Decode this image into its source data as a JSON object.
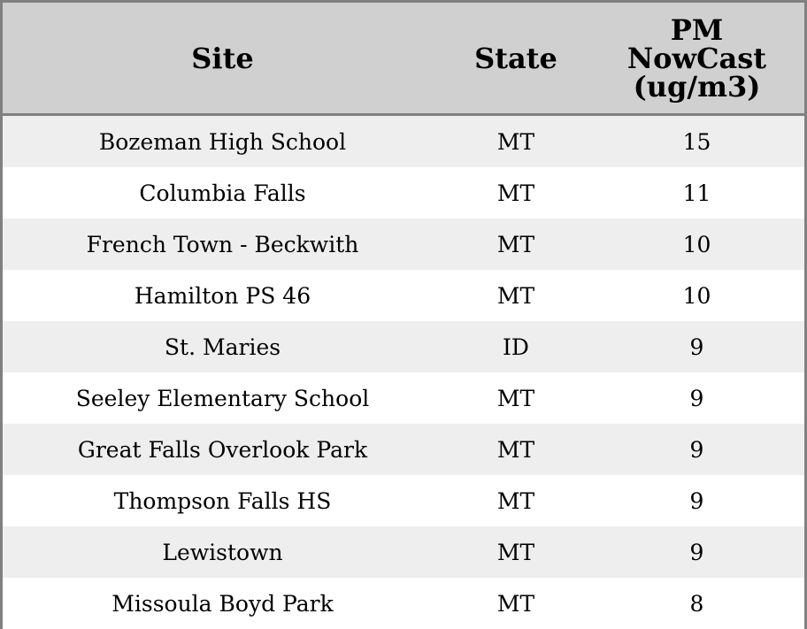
{
  "chart_data": {
    "type": "table",
    "columns": [
      "Site",
      "State",
      "PM\nNowCast\n(ug/m3)"
    ],
    "rows": [
      [
        "Bozeman High School",
        "MT",
        "15"
      ],
      [
        "Columbia Falls",
        "MT",
        "11"
      ],
      [
        "French Town - Beckwith",
        "MT",
        "10"
      ],
      [
        "Hamilton PS 46",
        "MT",
        "10"
      ],
      [
        "St. Maries",
        "ID",
        "9"
      ],
      [
        "Seeley Elementary School",
        "MT",
        "9"
      ],
      [
        "Great Falls Overlook Park",
        "MT",
        "9"
      ],
      [
        "Thompson Falls HS",
        "MT",
        "9"
      ],
      [
        "Lewistown",
        "MT",
        "9"
      ],
      [
        "Missoula Boyd Park",
        "MT",
        "8"
      ]
    ],
    "colors": {
      "header_bg": "#d0d0d0",
      "stripe_bg": "#eeeeee",
      "border": "#808080"
    }
  }
}
